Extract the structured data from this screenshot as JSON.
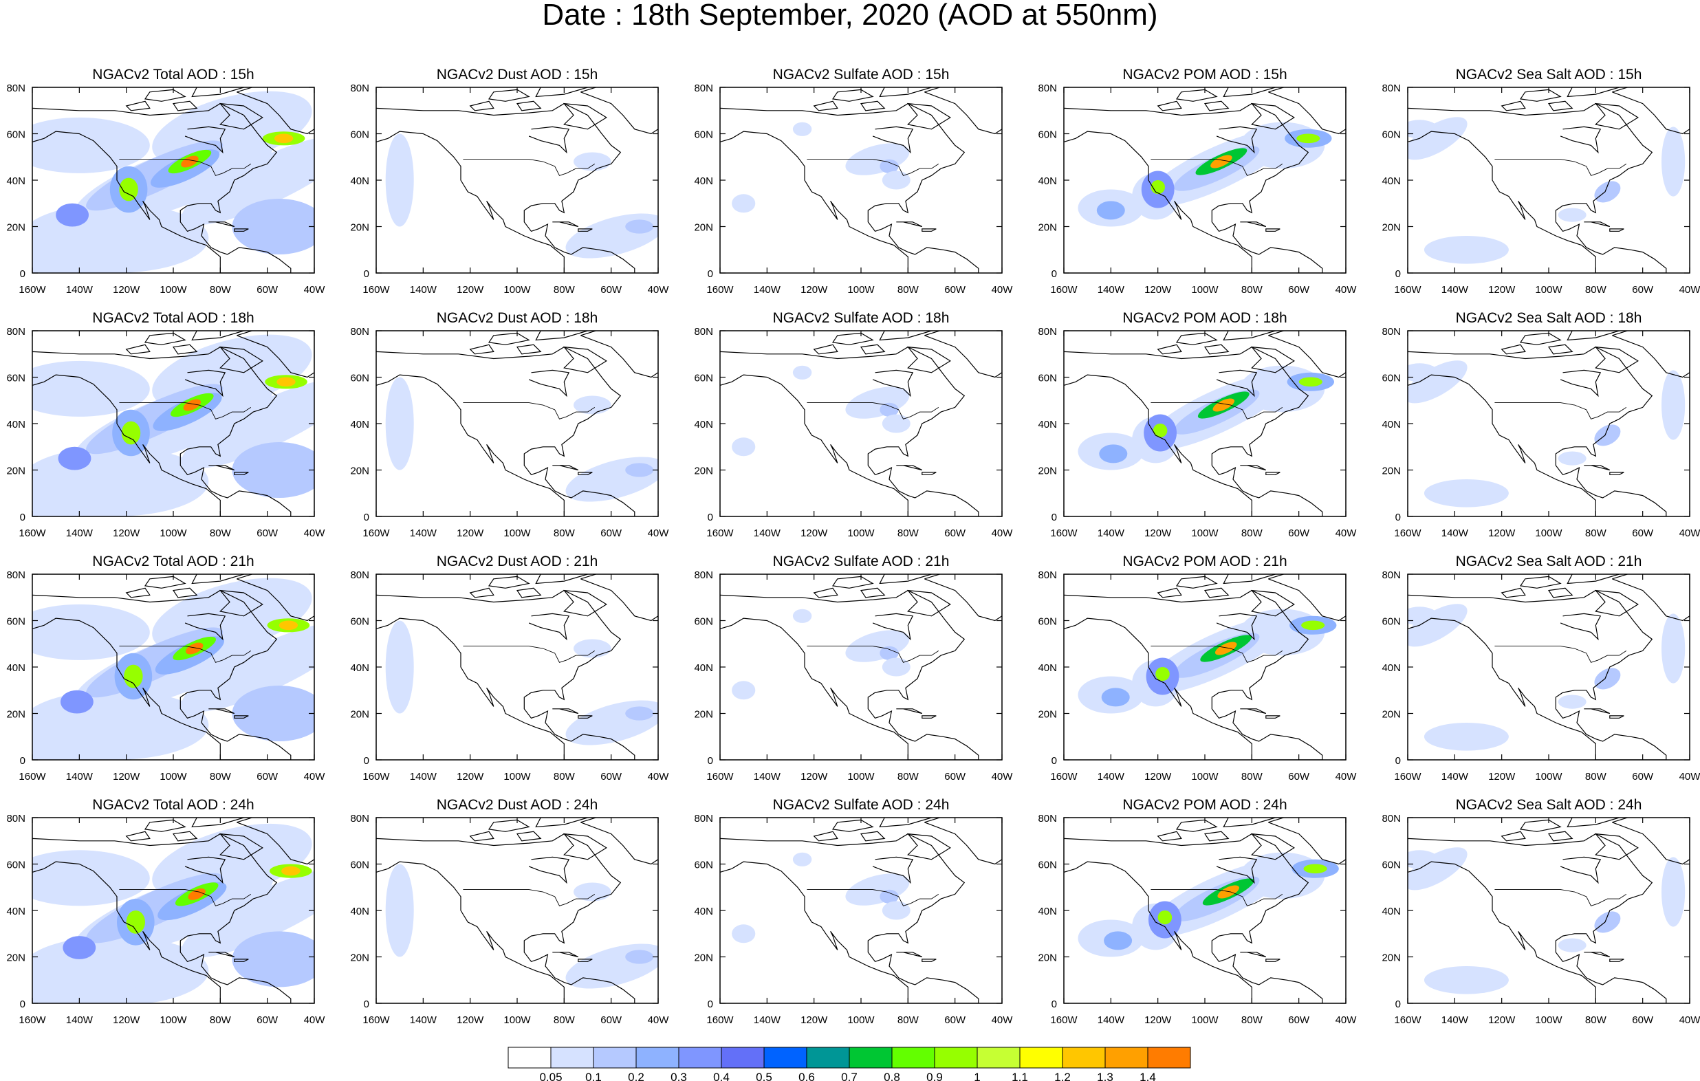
{
  "title": "Date : 18th September, 2020 (AOD at 550nm)",
  "rows": [
    {
      "panels": [
        "NGACv2 Total AOD : 15h",
        "NGACv2 Dust AOD : 15h",
        "NGACv2 Sulfate AOD : 15h",
        "NGACv2 POM AOD : 15h",
        "NGACv2 Sea Salt AOD : 15h"
      ]
    },
    {
      "panels": [
        "NGACv2 Total AOD : 18h",
        "NGACv2 Dust AOD : 18h",
        "NGACv2 Sulfate AOD : 18h",
        "NGACv2 POM AOD : 18h",
        "NGACv2 Sea Salt AOD : 18h"
      ]
    },
    {
      "panels": [
        "NGACv2 Total AOD : 21h",
        "NGACv2 Dust AOD : 21h",
        "NGACv2 Sulfate AOD : 21h",
        "NGACv2 POM AOD : 21h",
        "NGACv2 Sea Salt AOD : 21h"
      ]
    },
    {
      "panels": [
        "NGACv2 Total AOD : 24h",
        "NGACv2 Dust AOD : 24h",
        "NGACv2 Sulfate AOD : 24h",
        "NGACv2 POM AOD : 24h",
        "NGACv2 Sea Salt  AOD : 24h"
      ]
    }
  ],
  "axes": {
    "lat_ticks": [
      "0",
      "20N",
      "40N",
      "60N",
      "80N"
    ],
    "lon_ticks": [
      "160W",
      "140W",
      "120W",
      "100W",
      "80W",
      "60W",
      "40W"
    ]
  },
  "legend": {
    "labels": [
      "0.05",
      "0.1",
      "0.2",
      "0.3",
      "0.4",
      "0.5",
      "0.6",
      "0.7",
      "0.8",
      "0.9",
      "1",
      "1.1",
      "1.2",
      "1.3",
      "1.4"
    ],
    "colors": [
      "#ffffff",
      "#d6e2ff",
      "#b5c9ff",
      "#8eb2ff",
      "#7f96ff",
      "#6370f8",
      "#0063ff",
      "#009696",
      "#00c633",
      "#63ff00",
      "#96ff00",
      "#c6ff33",
      "#ffff00",
      "#ffc600",
      "#ffa000",
      "#ff7c00",
      "#ff1900"
    ]
  }
}
